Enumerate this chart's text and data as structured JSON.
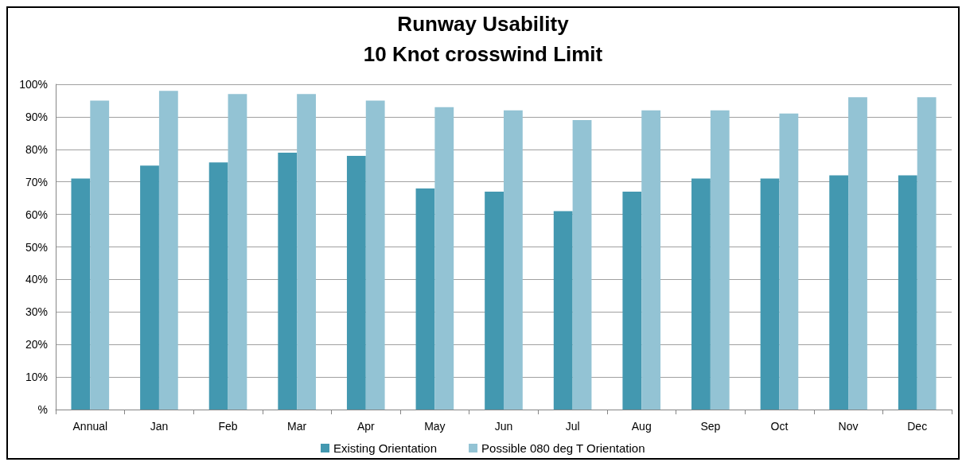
{
  "chart_data": {
    "type": "bar",
    "title": "Runway Usability",
    "subtitle": "10 Knot crosswind Limit",
    "categories": [
      "Annual",
      "Jan",
      "Feb",
      "Mar",
      "Apr",
      "May",
      "Jun",
      "Jul",
      "Aug",
      "Sep",
      "Oct",
      "Nov",
      "Dec"
    ],
    "series": [
      {
        "name": "Existing Orientation",
        "color": "#4398b0",
        "values": [
          71,
          75,
          76,
          79,
          78,
          68,
          67,
          61,
          67,
          71,
          71,
          72,
          72
        ]
      },
      {
        "name": "Possible 080 deg T Orientation",
        "color": "#93c3d4",
        "values": [
          95,
          98,
          97,
          97,
          95,
          93,
          92,
          89,
          92,
          92,
          91,
          96,
          96
        ]
      }
    ],
    "ylim": [
      0,
      100
    ],
    "yticks": [
      {
        "value": 0,
        "label": "%"
      },
      {
        "value": 10,
        "label": "10%"
      },
      {
        "value": 20,
        "label": "20%"
      },
      {
        "value": 30,
        "label": "30%"
      },
      {
        "value": 40,
        "label": "40%"
      },
      {
        "value": 50,
        "label": "50%"
      },
      {
        "value": 60,
        "label": "60%"
      },
      {
        "value": 70,
        "label": "70%"
      },
      {
        "value": 80,
        "label": "80%"
      },
      {
        "value": 90,
        "label": "90%"
      },
      {
        "value": 100,
        "label": "100%"
      }
    ],
    "grid": "y",
    "legend": "bottom"
  }
}
